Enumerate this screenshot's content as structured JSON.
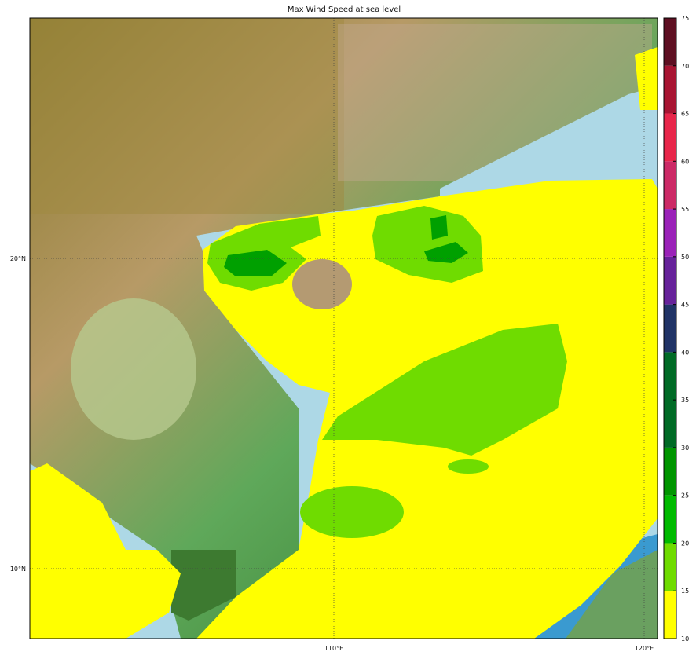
{
  "title": "Max Wind Speed at sea level",
  "map": {
    "lat_labels": [
      "20°N",
      "10°N"
    ],
    "lon_labels": [
      "110°E",
      "120°E"
    ],
    "extent": {
      "lon": [
        100.2,
        120.45
      ],
      "lat": [
        7.75,
        27.75
      ]
    },
    "gridlines": true,
    "basemap": "shaded relief"
  },
  "colorbar": {
    "ticks": [
      "10",
      "15",
      "20",
      "25",
      "30",
      "35",
      "40",
      "45",
      "50",
      "55",
      "60",
      "65",
      "70",
      "75"
    ],
    "bins": [
      {
        "from": 10,
        "to": 15,
        "color": "#ffff00"
      },
      {
        "from": 15,
        "to": 20,
        "color": "#6fdc00"
      },
      {
        "from": 20,
        "to": 25,
        "color": "#00bb00"
      },
      {
        "from": 25,
        "to": 30,
        "color": "#009600"
      },
      {
        "from": 30,
        "to": 40,
        "color": "#006a25"
      },
      {
        "from": 40,
        "to": 45,
        "color": "#203366"
      },
      {
        "from": 45,
        "to": 50,
        "color": "#66229a"
      },
      {
        "from": 50,
        "to": 55,
        "color": "#9a22b8"
      },
      {
        "from": 55,
        "to": 60,
        "color": "#cc2a66"
      },
      {
        "from": 60,
        "to": 65,
        "color": "#e8264a"
      },
      {
        "from": 65,
        "to": 70,
        "color": "#a81432"
      },
      {
        "from": 70,
        "to": 75,
        "color": "#5e0f22"
      }
    ]
  }
}
